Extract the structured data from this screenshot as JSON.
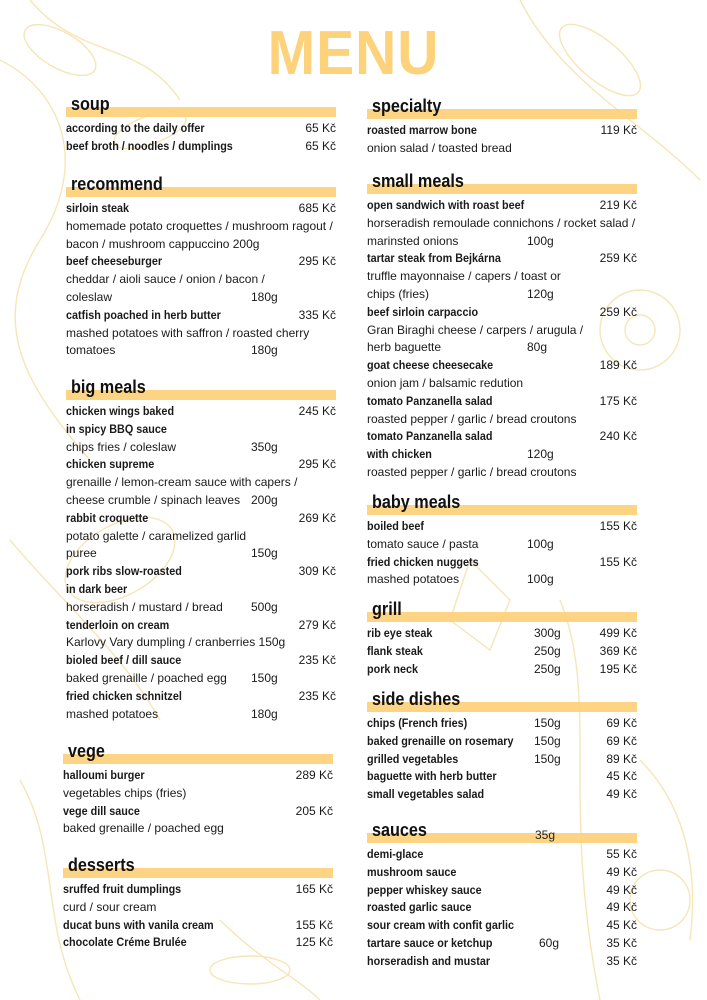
{
  "title": "MENU",
  "colors": {
    "accent": "#fccf77",
    "title": "#fdd27a"
  },
  "sections": [
    {
      "id": "soup",
      "title": "soup",
      "lines": [
        {
          "text": "according to the daily offer",
          "bold": true,
          "price": "65 Kč"
        },
        {
          "text": "beef broth / noodles / dumplings",
          "bold": true,
          "price": "65 Kč"
        }
      ]
    },
    {
      "id": "recommend",
      "title": "recommend",
      "lines": [
        {
          "text": "sirloin steak",
          "bold": true,
          "price": "685 Kč"
        },
        {
          "text": "homemade potato croquettes / mushroom ragout /"
        },
        {
          "text": "bacon / mushroom cappuccino  200g"
        },
        {
          "text": "beef cheeseburger",
          "bold": true,
          "price": "295 Kč"
        },
        {
          "text": "cheddar / aioli sauce / onion / bacon /"
        },
        {
          "text": "coleslaw",
          "weight": "180g"
        },
        {
          "text": "catfish poached in herb butter",
          "bold": true,
          "price": "335 Kč"
        },
        {
          "text": "mashed potatoes with saffron / roasted cherry"
        },
        {
          "text": "tomatoes",
          "weight": "180g"
        }
      ]
    },
    {
      "id": "big",
      "title": "big meals",
      "lines": [
        {
          "text": "chicken wings baked",
          "bold": true,
          "price": "245 Kč"
        },
        {
          "text": "in spicy BBQ sauce",
          "bold": true
        },
        {
          "text": "chips fries / coleslaw",
          "weight": "350g"
        },
        {
          "text": "chicken supreme",
          "bold": true,
          "price": "295 Kč"
        },
        {
          "text": "grenaille / lemon-cream sauce with capers /"
        },
        {
          "text": "cheese crumble / spinach leaves",
          "weight": "200g"
        },
        {
          "text": "rabbit croquette",
          "bold": true,
          "price": "269 Kč"
        },
        {
          "text": "potato galette / caramelized garlid"
        },
        {
          "text": "puree",
          "weight": "150g"
        },
        {
          "text": "pork ribs slow-roasted",
          "bold": true,
          "price": "309 Kč"
        },
        {
          "text": "in dark beer",
          "bold": true
        },
        {
          "text": "horseradish / mustard / bread",
          "weight": "500g"
        },
        {
          "text": "tenderloin on cream",
          "bold": true,
          "price": "279 Kč"
        },
        {
          "text": "Karlovy Vary dumpling / cranberries 150g"
        },
        {
          "text": "bioled beef / dill sauce",
          "bold": true,
          "price": "235 Kč"
        },
        {
          "text": "baked grenaille / poached egg",
          "weight": "150g"
        },
        {
          "text": "fried chicken schnitzel",
          "bold": true,
          "price": "235 Kč"
        },
        {
          "text": "mashed potatoes",
          "weight": "180g"
        }
      ]
    },
    {
      "id": "vege",
      "title": "vege",
      "lines": [
        {
          "text": "halloumi burger",
          "bold": true,
          "price": "289 Kč"
        },
        {
          "text": "vegetables chips (fries)"
        },
        {
          "text": "vege dill sauce",
          "bold": true,
          "price": "205 Kč"
        },
        {
          "text": "baked grenaille / poached egg"
        }
      ]
    },
    {
      "id": "desserts",
      "title": "desserts",
      "lines": [
        {
          "text": "sruffed fruit dumplings",
          "bold": true,
          "price": "165 Kč"
        },
        {
          "text": "curd / sour cream"
        },
        {
          "text": "ducat buns with vanila cream",
          "bold": true,
          "price": "155 Kč"
        },
        {
          "text": "chocolate Créme Brulée",
          "bold": true,
          "price": "125 Kč"
        }
      ]
    },
    {
      "id": "specialty",
      "title": "specialty",
      "lines": [
        {
          "text": "roasted marrow bone",
          "bold": true,
          "price": "119 Kč"
        },
        {
          "text": "onion salad / toasted bread"
        }
      ]
    },
    {
      "id": "small",
      "title": "small meals",
      "lines": [
        {
          "text": "open sandwich with roast beef",
          "bold": true,
          "price": "219 Kč"
        },
        {
          "text": "horseradish remoulade connichons / rocket salad /"
        },
        {
          "text": "marinsted onions",
          "weight": "100g"
        },
        {
          "text": "tartar steak from Bejkárna",
          "bold": true,
          "price": "259 Kč"
        },
        {
          "text": "truffle mayonnaise / capers / toast or"
        },
        {
          "text": "chips (fries)",
          "weight": "120g"
        },
        {
          "text": "beef sirloin carpaccio",
          "bold": true,
          "price": "259 Kč"
        },
        {
          "text": "Gran Biraghi cheese / carpers / arugula /"
        },
        {
          "text": "herb baguette",
          "weight": "80g"
        },
        {
          "text": "goat cheese cheesecake",
          "bold": true,
          "price": "189 Kč"
        },
        {
          "text": "onion jam / balsamic redution"
        },
        {
          "text": "tomato Panzanella salad",
          "bold": true,
          "price": "175 Kč"
        },
        {
          "text": "roasted pepper / garlic / bread croutons"
        },
        {
          "text": "tomato  Panzanella salad",
          "bold": true,
          "price": "240 Kč"
        },
        {
          "text": "with chicken",
          "bold": true,
          "weight": "120g"
        },
        {
          "text": "roasted pepper / garlic / bread croutons"
        }
      ]
    },
    {
      "id": "baby",
      "title": "baby meals",
      "lines": [
        {
          "text": "boiled beef",
          "bold": true,
          "price": "155 Kč"
        },
        {
          "text": "tomato sauce / pasta",
          "weight": "100g"
        },
        {
          "text": "fried chicken nuggets",
          "bold": true,
          "price": "155 Kč"
        },
        {
          "text": "mashed potatoes",
          "weight": "100g"
        }
      ]
    },
    {
      "id": "grill",
      "title": "grill",
      "lines": [
        {
          "text": "rib eye steak",
          "bold": true,
          "weight": "300g",
          "price": "499 Kč"
        },
        {
          "text": "flank steak",
          "bold": true,
          "weight": "250g",
          "price": "369 Kč"
        },
        {
          "text": "pork neck",
          "bold": true,
          "weight": "250g",
          "price": "195 Kč"
        }
      ]
    },
    {
      "id": "side",
      "title": "side dishes",
      "lines": [
        {
          "text": "chips  (French fries)",
          "bold": true,
          "weight": "150g",
          "price": "69 Kč"
        },
        {
          "text": "baked grenaille on rosemary",
          "bold": true,
          "weight": "150g",
          "price": "69 Kč"
        },
        {
          "text": "grilled vegetables",
          "bold": true,
          "weight": "150g",
          "price": "89 Kč"
        },
        {
          "text": "baguette with herb butter",
          "bold": true,
          "price": "45 Kč"
        },
        {
          "text": "small vegetables salad",
          "bold": true,
          "price": "49 Kč"
        }
      ]
    },
    {
      "id": "sauces",
      "title": "sauces",
      "extra": "35g",
      "lines": [
        {
          "text": "demi-glace",
          "bold": true,
          "price": "55 Kč"
        },
        {
          "text": "mushroom sauce",
          "bold": true,
          "price": "49 Kč"
        },
        {
          "text": "pepper whiskey sauce",
          "bold": true,
          "price": "49 Kč"
        },
        {
          "text": "roasted garlic sauce",
          "bold": true,
          "price": "49 Kč"
        },
        {
          "text": "sour cream with confit  garlic",
          "bold": true,
          "price": "45 Kč"
        },
        {
          "text": "tartare sauce or ketchup",
          "bold": true,
          "weight": "60g",
          "price": "35 Kč"
        },
        {
          "text": "horseradish and mustar",
          "bold": true,
          "price": "35 Kč"
        }
      ]
    }
  ]
}
